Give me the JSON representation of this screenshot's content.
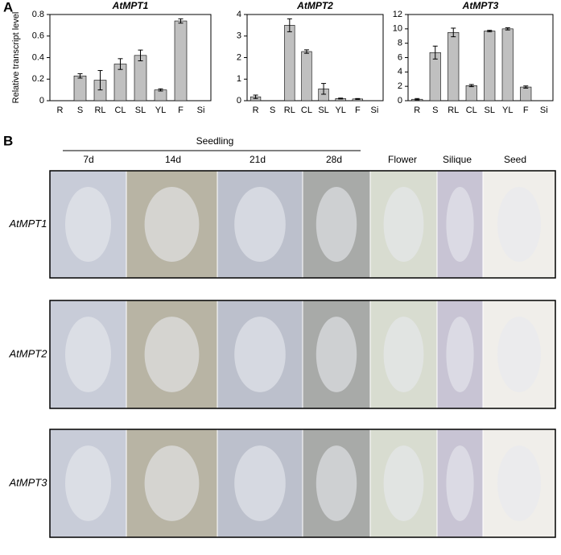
{
  "panel_labels": [
    "A",
    "B"
  ],
  "chart_data": [
    {
      "type": "bar",
      "title": "AtMPT1",
      "y_label": "Relative transcript level",
      "categories": [
        "R",
        "S",
        "RL",
        "CL",
        "SL",
        "YL",
        "F",
        "Si"
      ],
      "values": [
        0,
        0.23,
        0.19,
        0.34,
        0.42,
        0.1,
        0.74,
        0
      ],
      "errors": [
        0,
        0.02,
        0.09,
        0.05,
        0.05,
        0.01,
        0.02,
        0
      ],
      "color": "#c0c0c0",
      "ylim": [
        0,
        0.8
      ],
      "yticks": [
        0,
        0.2,
        0.4,
        0.6,
        0.8
      ]
    },
    {
      "type": "bar",
      "title": "AtMPT2",
      "categories": [
        "R",
        "S",
        "RL",
        "CL",
        "SL",
        "YL",
        "F",
        "Si"
      ],
      "values": [
        0.18,
        0,
        3.5,
        2.28,
        0.55,
        0.1,
        0.08,
        0
      ],
      "errors": [
        0.08,
        0,
        0.3,
        0.08,
        0.25,
        0.02,
        0.02,
        0
      ],
      "color": "#c0c0c0",
      "ylim": [
        0,
        4
      ],
      "yticks": [
        0,
        1,
        2,
        3,
        4
      ]
    },
    {
      "type": "bar",
      "title": "AtMPT3",
      "categories": [
        "R",
        "S",
        "RL",
        "CL",
        "SL",
        "YL",
        "F",
        "Si"
      ],
      "values": [
        0.2,
        6.7,
        9.5,
        2.1,
        9.7,
        10.0,
        1.9,
        0
      ],
      "errors": [
        0.1,
        0.9,
        0.6,
        0.15,
        0.1,
        0.15,
        0.15,
        0
      ],
      "color": "#c0c0c0",
      "ylim": [
        0,
        12
      ],
      "yticks": [
        0,
        2,
        4,
        6,
        8,
        10,
        12
      ]
    }
  ],
  "photo_grid": {
    "group_label": "Seedling",
    "columns": [
      "7d",
      "14d",
      "21d",
      "28d",
      "Flower",
      "Silique",
      "Seed"
    ],
    "rows": [
      "AtMPT1",
      "AtMPT2",
      "AtMPT3"
    ]
  }
}
